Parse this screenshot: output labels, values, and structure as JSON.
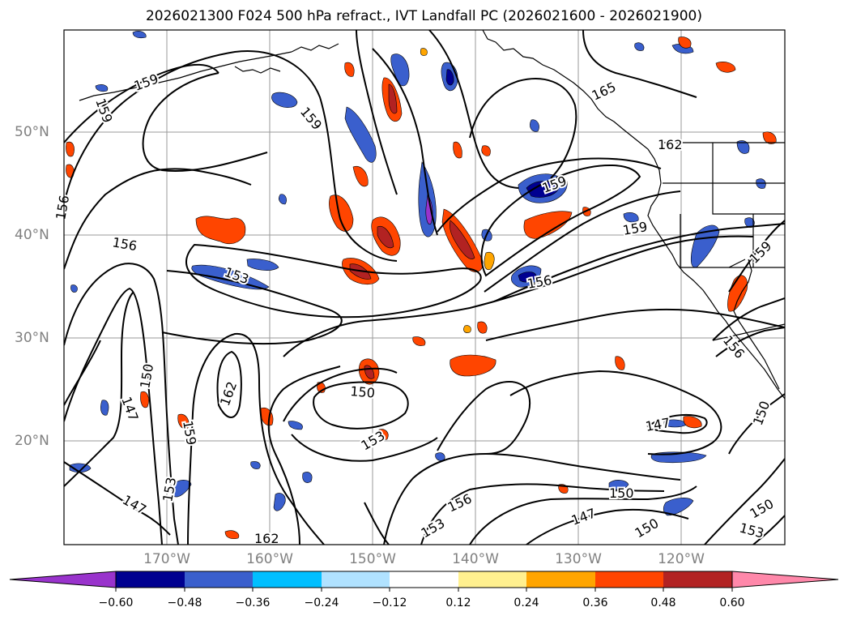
{
  "title": "2026021300 F024 500 hPa refract., IVT Landfall PC (2026021600 - 2026021900)",
  "map": {
    "lon_labels": [
      "170°W",
      "160°W",
      "150°W",
      "140°W",
      "130°W",
      "120°W"
    ],
    "lat_labels": [
      "50°N",
      "40°N",
      "30°N",
      "20°N"
    ],
    "contour_labels": [
      "159",
      "159",
      "156",
      "156",
      "153",
      "150",
      "147",
      "159",
      "162",
      "153",
      "147",
      "162",
      "150",
      "153",
      "153",
      "156",
      "150",
      "147",
      "150",
      "147",
      "150",
      "153",
      "150",
      "156",
      "159",
      "165",
      "162",
      "159",
      "156",
      "159",
      "159"
    ]
  },
  "colorbar": {
    "colors": [
      "#9933cc",
      "#000090",
      "#3a5fcd",
      "#00bfff",
      "#b0e2ff",
      "#ffffff",
      "#fff08f",
      "#ffa500",
      "#ff4500",
      "#b22222",
      "#ff88aa"
    ],
    "ticks": [
      "−0.60",
      "−0.48",
      "−0.36",
      "−0.24",
      "−0.12",
      "0.12",
      "0.24",
      "0.36",
      "0.48",
      "0.60"
    ]
  }
}
